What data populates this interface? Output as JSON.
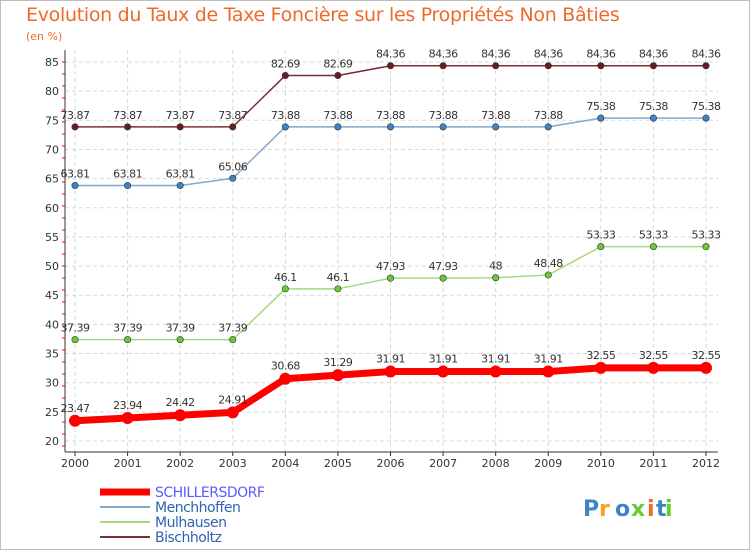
{
  "title": "Evolution du Taux de Taxe Foncière sur les Propriétés Non Bâties",
  "unit": "(en %)",
  "logo": "Proxiti",
  "chart_data": {
    "type": "line",
    "ylim": [
      20,
      85
    ],
    "yticks": [
      20,
      25,
      30,
      35,
      40,
      45,
      50,
      55,
      60,
      65,
      70,
      75,
      80,
      85
    ],
    "x": [
      "2000",
      "2001",
      "2002",
      "2003",
      "2004",
      "2005",
      "2006",
      "2007",
      "2008",
      "2009",
      "2010",
      "2011",
      "2012"
    ],
    "grid": true,
    "legend_position": "bottom-left",
    "series": [
      {
        "name": "Bischholtz",
        "color": "#7a2e33",
        "point_color": "#6b1b22",
        "values": [
          73.87,
          73.87,
          73.87,
          73.87,
          82.69,
          82.69,
          84.36,
          84.36,
          84.36,
          84.36,
          84.36,
          84.36,
          84.36
        ],
        "labels": [
          "73.87",
          "73.87",
          "73.87",
          "73.87",
          "82.69",
          "82.69",
          "84.36",
          "84.36",
          "84.36",
          "84.36",
          "84.36",
          "84.36",
          "84.36"
        ]
      },
      {
        "name": "Menchhoffen",
        "color": "#7fa8cf",
        "point_color": "#3d85c6",
        "values": [
          63.81,
          63.81,
          63.81,
          65.06,
          73.88,
          73.88,
          73.88,
          73.88,
          73.88,
          73.88,
          75.38,
          75.38,
          75.38
        ],
        "labels": [
          "63.81",
          "63.81",
          "63.81",
          "65.06",
          "73.88",
          "73.88",
          "73.88",
          "73.88",
          "73.88",
          "73.88",
          "75.38",
          "75.38",
          "75.38"
        ]
      },
      {
        "name": "Mulhausen",
        "color": "#a6d97e",
        "point_color": "#66cc33",
        "values": [
          37.39,
          37.39,
          37.39,
          37.39,
          46.1,
          46.1,
          47.93,
          47.93,
          48,
          48.48,
          53.33,
          53.33,
          53.33
        ],
        "labels": [
          "37.39",
          "37.39",
          "37.39",
          "37.39",
          "46.1",
          "46.1",
          "47.93",
          "47.93",
          "48",
          "48.48",
          "53.33",
          "53.33",
          "53.33"
        ]
      },
      {
        "name": "SCHILLERSDORF",
        "color": "#ff0000",
        "point_color": "#ff0000",
        "values": [
          23.47,
          23.94,
          24.42,
          24.91,
          30.68,
          31.29,
          31.91,
          31.91,
          31.91,
          31.91,
          32.55,
          32.55,
          32.55
        ],
        "labels": [
          "23.47",
          "23.94",
          "24.42",
          "24.91",
          "30.68",
          "31.29",
          "31.91",
          "31.91",
          "31.91",
          "31.91",
          "32.55",
          "32.55",
          "32.55"
        ]
      }
    ],
    "legend": [
      {
        "name": "SCHILLERSDORF",
        "color": "#ff0000",
        "text_color": "#5b5bff"
      },
      {
        "name": "Menchhoffen",
        "color": "#7fa8cf",
        "text_color": "#2f63b0"
      },
      {
        "name": "Mulhausen",
        "color": "#a6d97e",
        "text_color": "#2f63b0"
      },
      {
        "name": "Bischholtz",
        "color": "#7a2e33",
        "text_color": "#2f63b0"
      }
    ]
  }
}
